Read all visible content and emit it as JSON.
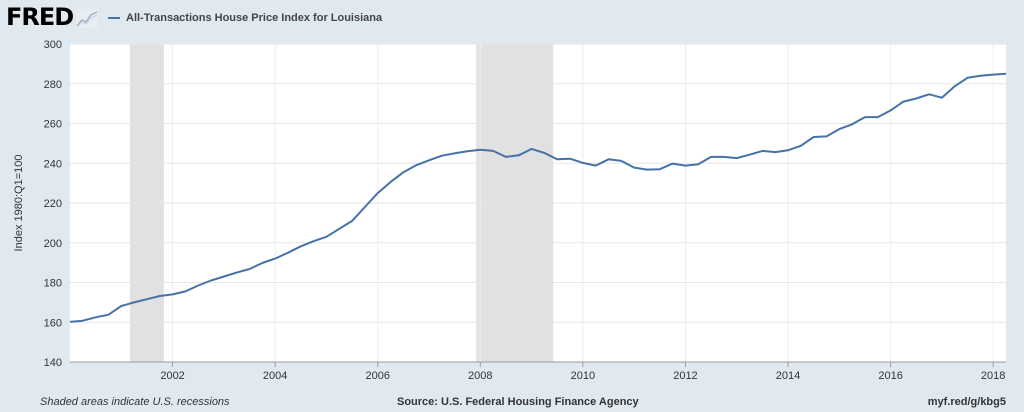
{
  "header": {
    "logo_text": "FRED",
    "logo_icon": "chart-line-icon",
    "legend_label": "All-Transactions House Price Index for Louisiana",
    "series_color": "#4572a7"
  },
  "footer": {
    "note": "Shaded areas indicate U.S. recessions",
    "source": "Source: U.S. Federal Housing Finance Agency",
    "link": "myf.red/g/kbg5"
  },
  "chart_data": {
    "type": "line",
    "title": "",
    "xlabel": "",
    "ylabel": "Index 1980:Q1=100",
    "xlim": [
      2000.0,
      2018.25
    ],
    "ylim": [
      140,
      300
    ],
    "y_ticks": [
      140,
      160,
      180,
      200,
      220,
      240,
      260,
      280,
      300
    ],
    "x_ticks": [
      2002,
      2004,
      2006,
      2008,
      2010,
      2012,
      2014,
      2016,
      2018
    ],
    "grid": true,
    "legend_position": "top-left",
    "recessions": [
      [
        2001.17,
        2001.83
      ],
      [
        2007.92,
        2009.42
      ]
    ],
    "series": [
      {
        "name": "All-Transactions House Price Index for Louisiana",
        "color": "#4572a7",
        "x": [
          2000.0,
          2000.25,
          2000.5,
          2000.75,
          2001.0,
          2001.25,
          2001.5,
          2001.75,
          2002.0,
          2002.25,
          2002.5,
          2002.75,
          2003.0,
          2003.25,
          2003.5,
          2003.75,
          2004.0,
          2004.25,
          2004.5,
          2004.75,
          2005.0,
          2005.25,
          2005.5,
          2005.75,
          2006.0,
          2006.25,
          2006.5,
          2006.75,
          2007.0,
          2007.25,
          2007.5,
          2007.75,
          2008.0,
          2008.25,
          2008.5,
          2008.75,
          2009.0,
          2009.25,
          2009.5,
          2009.75,
          2010.0,
          2010.25,
          2010.5,
          2010.75,
          2011.0,
          2011.25,
          2011.5,
          2011.75,
          2012.0,
          2012.25,
          2012.5,
          2012.75,
          2013.0,
          2013.25,
          2013.5,
          2013.75,
          2014.0,
          2014.25,
          2014.5,
          2014.75,
          2015.0,
          2015.25,
          2015.5,
          2015.75,
          2016.0,
          2016.25,
          2016.5,
          2016.75,
          2017.0,
          2017.25,
          2017.5,
          2017.75,
          2018.0,
          2018.25
        ],
        "values": [
          160.2,
          160.8,
          162.5,
          163.8,
          168.2,
          170.0,
          171.6,
          173.2,
          174.0,
          175.5,
          178.5,
          181.0,
          183.0,
          185.0,
          186.8,
          189.8,
          192.0,
          195.0,
          198.2,
          200.8,
          203.0,
          207.0,
          211.0,
          218.0,
          225.0,
          230.5,
          235.5,
          239.0,
          241.5,
          243.8,
          245.0,
          246.0,
          246.8,
          246.2,
          243.2,
          244.0,
          247.2,
          245.2,
          242.0,
          242.3,
          240.2,
          238.8,
          242.0,
          241.2,
          237.8,
          236.8,
          237.0,
          239.8,
          238.8,
          239.5,
          243.2,
          243.2,
          242.6,
          244.3,
          246.2,
          245.6,
          246.5,
          248.8,
          253.2,
          253.5,
          257.2,
          259.6,
          263.2,
          263.2,
          266.6,
          271.0,
          272.6,
          274.7,
          273.0,
          278.7,
          283.0,
          284.0,
          284.6,
          285.0
        ]
      }
    ]
  }
}
